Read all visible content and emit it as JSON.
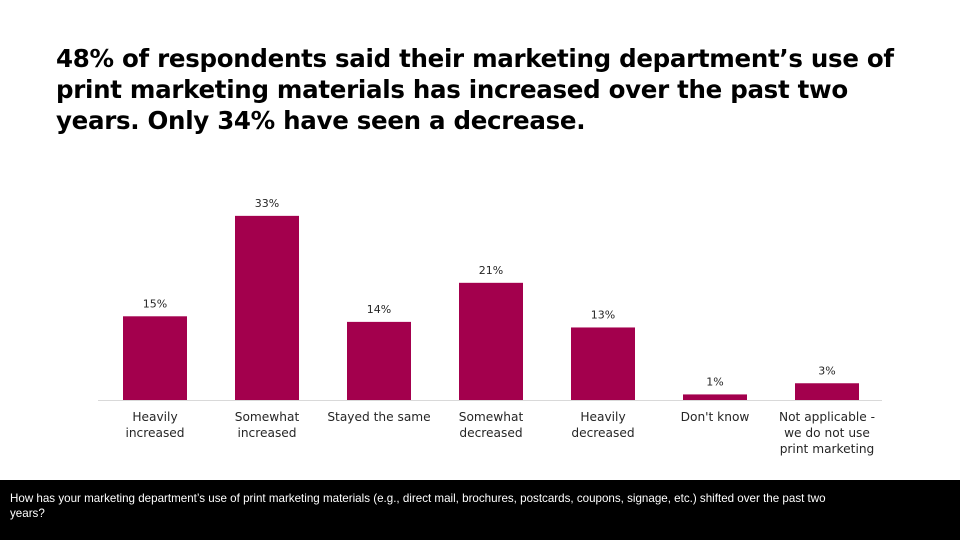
{
  "title": "48% of respondents said their marketing department’s use of print marketing materials has increased over the past two years. Only 34% have seen a decrease.",
  "footer": {
    "question": "How has your marketing department’s use of print marketing materials (e.g., direct mail, brochures, postcards, coupons, signage, etc.) shifted over the past two years?"
  },
  "colors": {
    "bar": "#A3004D",
    "axis": "#D9D9D9",
    "footer_bg": "#000000"
  },
  "chart_data": {
    "type": "bar",
    "title": "48% of respondents said their marketing department’s use of print marketing materials has increased over the past two years. Only 34% have seen a decrease.",
    "xlabel": "",
    "ylabel": "",
    "ylim": [
      0,
      35
    ],
    "grid": false,
    "legend": "none",
    "categories": [
      [
        "Heavily",
        "increased"
      ],
      [
        "Somewhat",
        "increased"
      ],
      [
        "Stayed the same"
      ],
      [
        "Somewhat",
        "decreased"
      ],
      [
        "Heavily",
        "decreased"
      ],
      [
        "Don't know"
      ],
      [
        "Not applicable -",
        "we do not use",
        "print marketing"
      ]
    ],
    "values": [
      15,
      33,
      14,
      21,
      13,
      1,
      3
    ],
    "data_labels": [
      "15%",
      "33%",
      "14%",
      "21%",
      "13%",
      "1%",
      "3%"
    ]
  }
}
